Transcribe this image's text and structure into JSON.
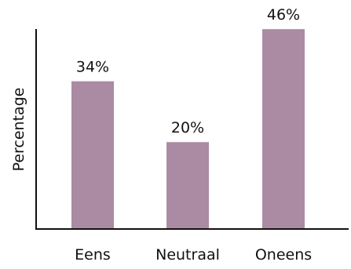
{
  "chart_data": {
    "type": "bar",
    "categories": [
      "Eens",
      "Neutraal",
      "Oneens"
    ],
    "values": [
      34,
      20,
      46
    ],
    "value_labels": [
      "34%",
      "20%",
      "46%"
    ],
    "title": "",
    "xlabel": "",
    "ylabel": "Percentage",
    "ylim": [
      0,
      50
    ],
    "grid": false,
    "bar_color": "#ab8aa4",
    "axis_color": "#111111"
  }
}
